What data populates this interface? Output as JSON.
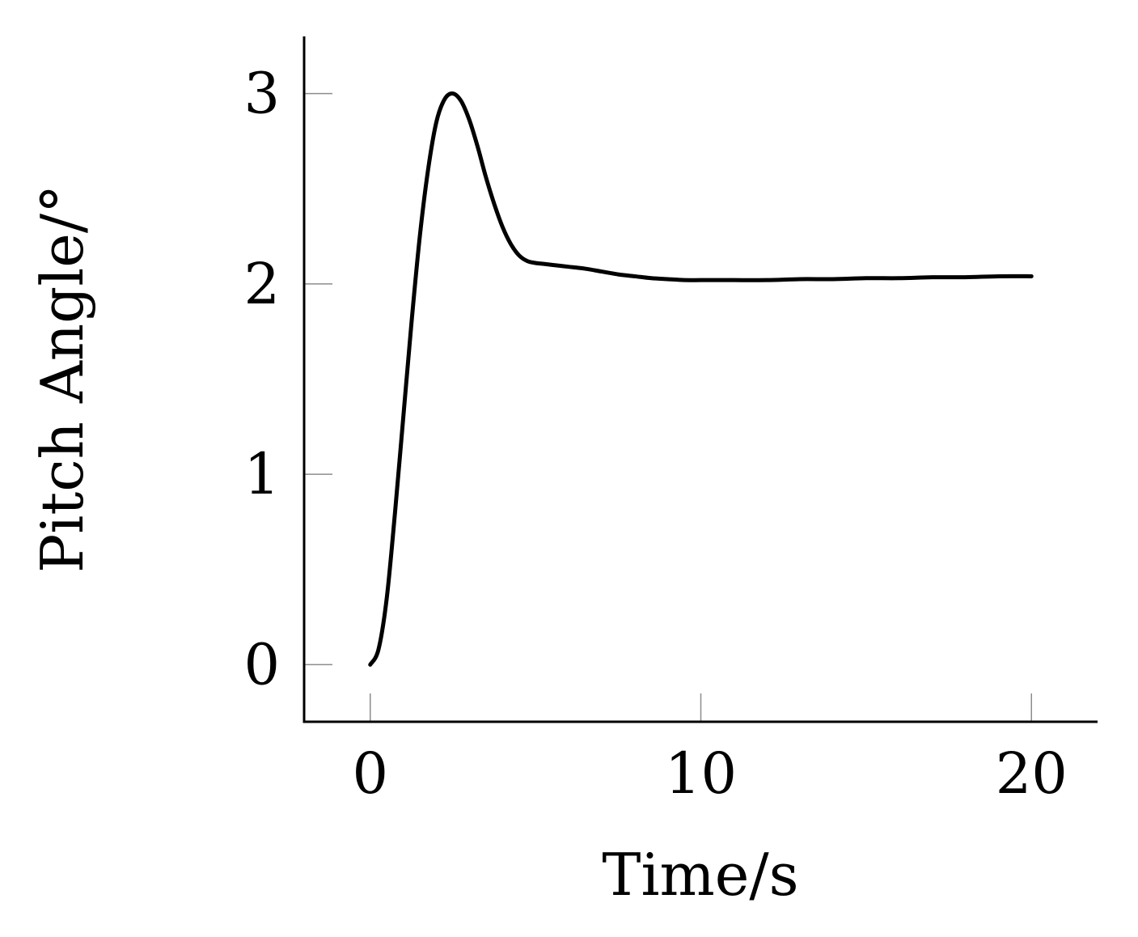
{
  "chart_data": {
    "type": "line",
    "title": "",
    "xlabel": "Time/s",
    "ylabel": "Pitch Angle/°",
    "xlim": [
      -2,
      22
    ],
    "ylim": [
      -0.3,
      3.3
    ],
    "xticks": [
      0,
      10,
      20
    ],
    "yticks": [
      0,
      1,
      2,
      3
    ],
    "xtick_labels": [
      "0",
      "10",
      "20"
    ],
    "ytick_labels": [
      "0",
      "1",
      "2",
      "3"
    ],
    "grid": false,
    "legend": "none",
    "line_color": "#000000",
    "series": [
      {
        "x": [
          0,
          0.25,
          0.5,
          0.75,
          1.0,
          1.25,
          1.5,
          1.75,
          2.0,
          2.25,
          2.5,
          2.75,
          3.0,
          3.25,
          3.5,
          3.75,
          4.0,
          4.25,
          4.5,
          4.75,
          5.0,
          5.25,
          5.5,
          5.75,
          6.0,
          6.5,
          7.0,
          7.5,
          8.0,
          8.5,
          9.0,
          9.5,
          10.0,
          10.5,
          11.0,
          12.0,
          13.0,
          14.0,
          15.0,
          16.0,
          17.0,
          18.0,
          19.0,
          20.0
        ],
        "values": [
          0,
          0.08,
          0.35,
          0.8,
          1.3,
          1.8,
          2.25,
          2.6,
          2.85,
          2.97,
          3.0,
          2.96,
          2.86,
          2.72,
          2.56,
          2.42,
          2.3,
          2.21,
          2.15,
          2.12,
          2.11,
          2.105,
          2.1,
          2.095,
          2.09,
          2.08,
          2.065,
          2.05,
          2.04,
          2.03,
          2.025,
          2.02,
          2.02,
          2.02,
          2.02,
          2.02,
          2.025,
          2.025,
          2.03,
          2.03,
          2.035,
          2.035,
          2.04,
          2.04
        ]
      }
    ]
  }
}
